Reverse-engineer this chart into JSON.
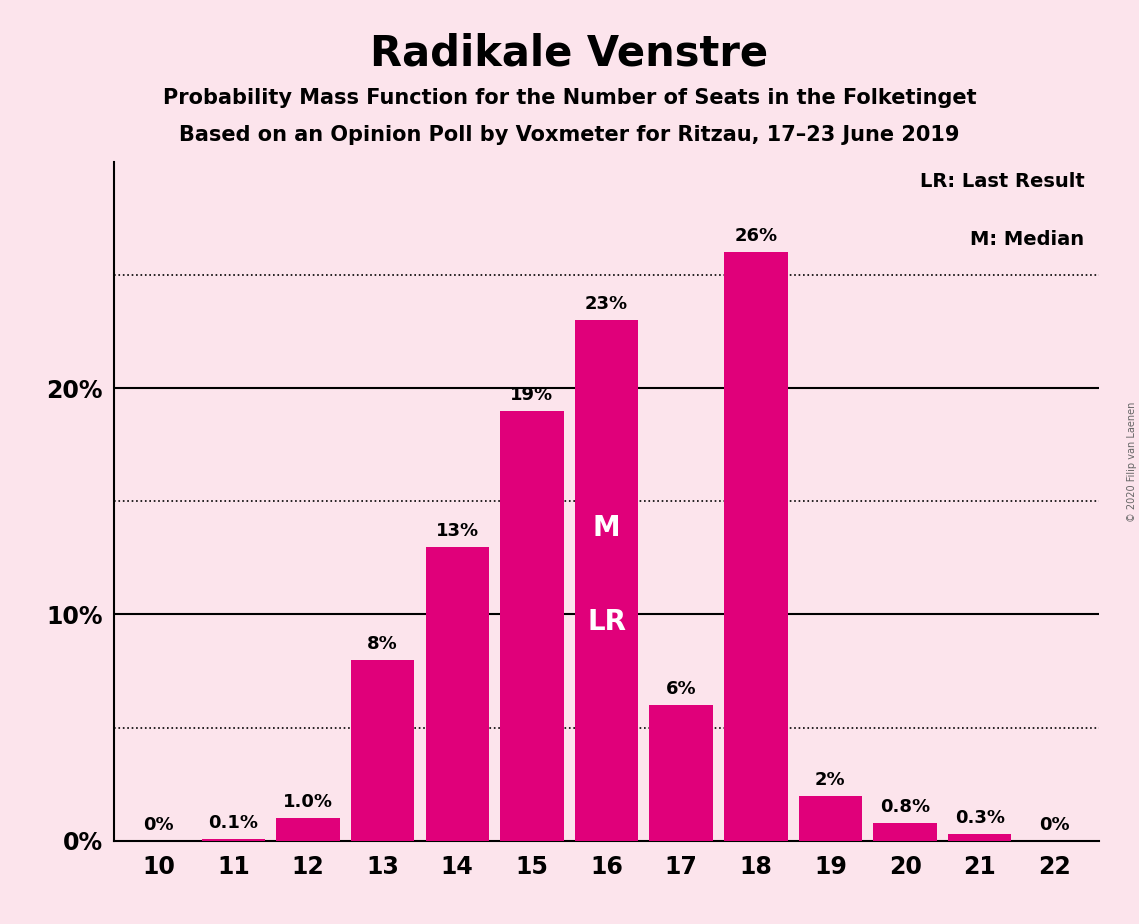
{
  "title": "Radikale Venstre",
  "subtitle1": "Probability Mass Function for the Number of Seats in the Folketinget",
  "subtitle2": "Based on an Opinion Poll by Voxmeter for Ritzau, 17–23 June 2019",
  "copyright": "© 2020 Filip van Laenen",
  "categories": [
    10,
    11,
    12,
    13,
    14,
    15,
    16,
    17,
    18,
    19,
    20,
    21,
    22
  ],
  "values": [
    0.0,
    0.1,
    1.0,
    8.0,
    13.0,
    19.0,
    23.0,
    6.0,
    26.0,
    2.0,
    0.8,
    0.3,
    0.0
  ],
  "labels": [
    "0%",
    "0.1%",
    "1.0%",
    "8%",
    "13%",
    "19%",
    "23%",
    "6%",
    "26%",
    "2%",
    "0.8%",
    "0.3%",
    "0%"
  ],
  "bar_color": "#e0007a",
  "background_color": "#fce4ec",
  "text_color": "#000000",
  "label_color_inside": "#ffffff",
  "label_color_outside": "#000000",
  "median_seat": 16,
  "last_result_seat": 16,
  "legend_lr": "LR: Last Result",
  "legend_m": "M: Median",
  "ylim": [
    0,
    30
  ],
  "dotted_lines": [
    5,
    15,
    25
  ],
  "solid_lines": [
    10,
    20
  ],
  "ytick_positions": [
    0,
    10,
    20
  ],
  "ytick_labels": [
    "0%",
    "10%",
    "20%"
  ],
  "figsize": [
    11.39,
    9.24
  ],
  "dpi": 100
}
